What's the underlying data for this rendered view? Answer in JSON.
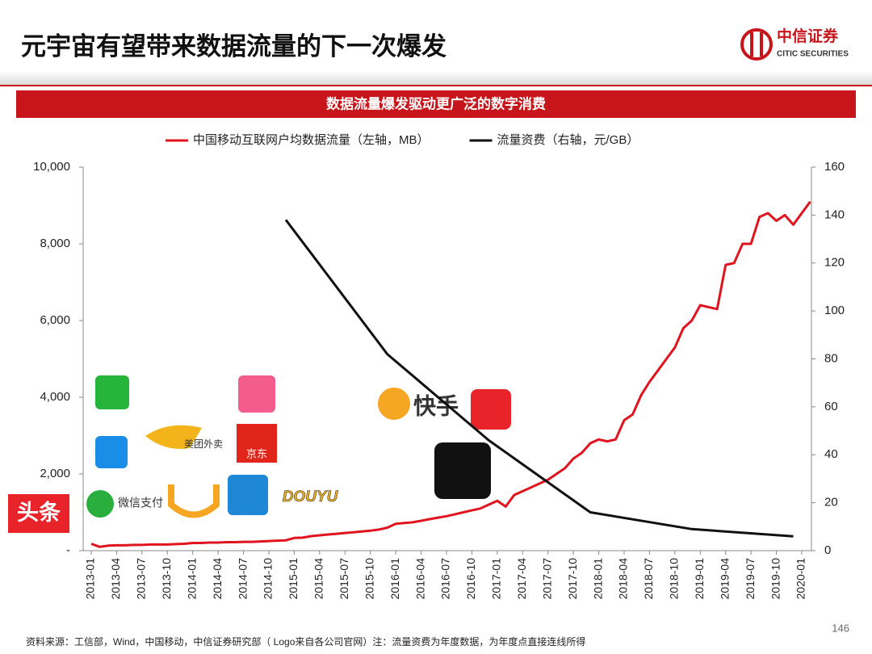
{
  "header": {
    "title": "元宇宙有望带来数据流量的下一次爆发",
    "brand": "中信证券",
    "brand_en": "CITIC SECURITIES"
  },
  "banner": "数据流量爆发驱动更广泛的数字消费",
  "chart_data": {
    "type": "line",
    "categories": [
      "2013-01",
      null,
      null,
      "2013-04",
      null,
      null,
      "2013-07",
      null,
      null,
      "2013-10",
      null,
      null,
      "2014-01",
      null,
      null,
      "2014-04",
      null,
      null,
      "2014-07",
      null,
      null,
      "2014-10",
      null,
      null,
      "2015-01",
      null,
      null,
      "2015-04",
      null,
      null,
      "2015-07",
      null,
      null,
      "2015-10",
      null,
      null,
      "2016-01",
      null,
      null,
      "2016-04",
      null,
      null,
      "2016-07",
      null,
      null,
      "2016-10",
      null,
      null,
      "2017-01",
      null,
      null,
      "2017-04",
      null,
      null,
      "2017-07",
      null,
      null,
      "2017-10",
      null,
      null,
      "2018-01",
      null,
      null,
      "2018-04",
      null,
      null,
      "2018-07",
      null,
      null,
      "2018-10",
      null,
      null,
      "2019-01",
      null,
      null,
      "2019-04",
      null,
      null,
      "2019-07",
      null,
      null,
      "2019-10",
      null,
      null,
      "2020-01",
      null
    ],
    "series": [
      {
        "name": "中国移动互联网户均数据流量（左轴，MB）",
        "color": "#e0141e",
        "values": [
          180,
          100,
          130,
          140,
          140,
          150,
          150,
          160,
          160,
          160,
          170,
          180,
          200,
          200,
          210,
          210,
          220,
          220,
          230,
          230,
          240,
          250,
          260,
          270,
          330,
          340,
          380,
          400,
          420,
          440,
          460,
          480,
          500,
          520,
          550,
          600,
          700,
          720,
          740,
          780,
          820,
          860,
          900,
          950,
          1000,
          1050,
          1100,
          1200,
          1300,
          1150,
          1450,
          1550,
          1650,
          1750,
          1850,
          2000,
          2150,
          2400,
          2550,
          2800,
          2900,
          2850,
          2900,
          3400,
          3550,
          4050,
          4400,
          4700,
          5000,
          5300,
          5800,
          6000,
          6400,
          6350,
          6300,
          7450,
          7500,
          8000,
          8000,
          8700,
          8800,
          8600,
          8750,
          8500,
          8800,
          9100
        ]
      },
      {
        "name": "流量资费（右轴，元/GB）",
        "color": "#111111",
        "axis": "y2",
        "x": [
          "2014-12",
          "2015-12",
          "2016-12",
          "2017-12",
          "2018-12",
          "2019-12"
        ],
        "values": [
          138,
          82,
          46,
          16,
          9,
          6
        ]
      }
    ],
    "ylim": [
      0,
      10000
    ],
    "yticks": [
      {
        "value": 0,
        "label": "-"
      },
      {
        "value": 2000,
        "label": "2,000"
      },
      {
        "value": 4000,
        "label": "4,000"
      },
      {
        "value": 6000,
        "label": "6,000"
      },
      {
        "value": 8000,
        "label": "8,000"
      },
      {
        "value": 10000,
        "label": "10,000"
      }
    ],
    "y2lim": [
      0,
      160
    ],
    "y2ticks": [
      0,
      20,
      40,
      60,
      80,
      100,
      120,
      140,
      160
    ]
  },
  "logos": [
    "头条",
    "微信支付",
    "美团外卖",
    "京东",
    "快手",
    "DOUYU"
  ],
  "footer": {
    "source": "资料来源：工信部，Wind，中国移动，中信证券研究部（ Logo来自各公司官网）注：流量资费为年度数据，为年度点直接连线所得",
    "page": "146"
  }
}
